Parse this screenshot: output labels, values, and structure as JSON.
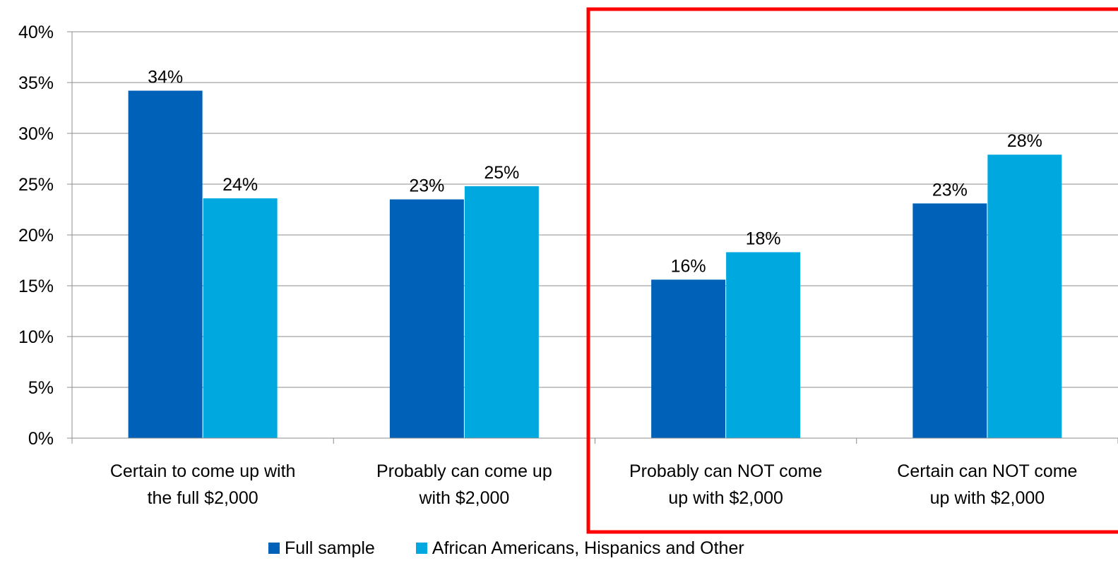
{
  "chart_data": {
    "type": "bar",
    "categories": [
      [
        "Certain to come up with",
        "the full $2,000"
      ],
      [
        "Probably can come up",
        "with $2,000"
      ],
      [
        "Probably can NOT come",
        "up with $2,000"
      ],
      [
        "Certain can NOT come",
        "up with $2,000"
      ]
    ],
    "series": [
      {
        "name": "Full sample",
        "color": "#0061B8",
        "values": [
          34.2,
          23.5,
          15.6,
          23.1
        ],
        "labels": [
          "34%",
          "23%",
          "16%",
          "23%"
        ]
      },
      {
        "name": "African Americans, Hispanics and Other",
        "color": "#00A8E0",
        "values": [
          23.6,
          24.8,
          18.3,
          27.9
        ],
        "labels": [
          "24%",
          "25%",
          "18%",
          "28%"
        ]
      }
    ],
    "ylim": [
      0,
      40
    ],
    "yticks": [
      0,
      5,
      10,
      15,
      20,
      25,
      30,
      35,
      40
    ],
    "ytick_labels": [
      "0%",
      "5%",
      "10%",
      "15%",
      "20%",
      "25%",
      "30%",
      "35%",
      "40%"
    ],
    "grid": true,
    "legend_position": "bottom",
    "highlight": {
      "categories": [
        2,
        3
      ],
      "color": "#FF0000"
    },
    "title": "",
    "xlabel": "",
    "ylabel": ""
  }
}
